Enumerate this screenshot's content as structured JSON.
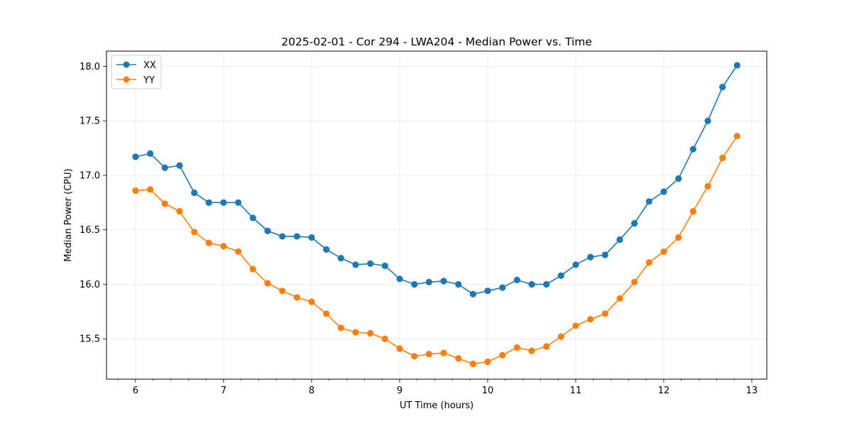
{
  "chart_data": {
    "type": "line",
    "title": "2025-02-01 - Cor 294 - LWA204 - Median Power vs. Time",
    "xlabel": "UT Time (hours)",
    "ylabel": "Median Power (CPU)",
    "xlim": [
      5.67,
      13.17
    ],
    "ylim": [
      15.13,
      18.14
    ],
    "xticks": [
      6,
      7,
      8,
      9,
      10,
      11,
      12,
      13
    ],
    "xtick_labels": [
      "6",
      "7",
      "8",
      "9",
      "10",
      "11",
      "12",
      "13"
    ],
    "yticks": [
      15.5,
      16.0,
      16.5,
      17.0,
      17.5,
      18.0
    ],
    "ytick_labels": [
      "15.5",
      "16.0",
      "16.5",
      "17.0",
      "17.5",
      "18.0"
    ],
    "grid": true,
    "legend_position": "top-left",
    "x": [
      6.0,
      6.167,
      6.333,
      6.5,
      6.667,
      6.833,
      7.0,
      7.167,
      7.333,
      7.5,
      7.667,
      7.833,
      8.0,
      8.167,
      8.333,
      8.5,
      8.667,
      8.833,
      9.0,
      9.167,
      9.333,
      9.5,
      9.667,
      9.833,
      10.0,
      10.167,
      10.333,
      10.5,
      10.667,
      10.833,
      11.0,
      11.167,
      11.333,
      11.5,
      11.667,
      11.833,
      12.0,
      12.167,
      12.333,
      12.5,
      12.667,
      12.833
    ],
    "series": [
      {
        "name": "XX",
        "color": "#1f77b4",
        "values": [
          17.17,
          17.2,
          17.07,
          17.09,
          16.84,
          16.75,
          16.75,
          16.75,
          16.61,
          16.49,
          16.44,
          16.44,
          16.43,
          16.32,
          16.24,
          16.18,
          16.19,
          16.17,
          16.05,
          16.0,
          16.02,
          16.03,
          16.0,
          15.91,
          15.94,
          15.97,
          16.04,
          16.0,
          16.0,
          16.08,
          16.18,
          16.25,
          16.27,
          16.41,
          16.56,
          16.76,
          16.85,
          16.97,
          17.24,
          17.5,
          17.81,
          18.01
        ]
      },
      {
        "name": "YY",
        "color": "#ff7f0e",
        "values": [
          16.86,
          16.87,
          16.74,
          16.67,
          16.48,
          16.38,
          16.35,
          16.3,
          16.14,
          16.01,
          15.94,
          15.88,
          15.84,
          15.73,
          15.6,
          15.56,
          15.55,
          15.5,
          15.41,
          15.34,
          15.36,
          15.37,
          15.32,
          15.27,
          15.29,
          15.35,
          15.42,
          15.39,
          15.43,
          15.52,
          15.62,
          15.68,
          15.73,
          15.87,
          16.02,
          16.2,
          16.3,
          16.43,
          16.67,
          16.9,
          17.16,
          17.36
        ]
      }
    ]
  }
}
